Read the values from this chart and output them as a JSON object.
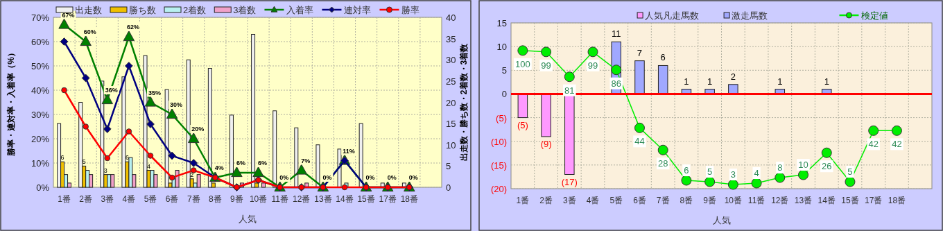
{
  "chart_data": [
    {
      "type": "bar",
      "categories": [
        "1番",
        "2番",
        "3番",
        "4番",
        "5番",
        "6番",
        "7番",
        "8番",
        "9番",
        "10番",
        "11番",
        "12番",
        "13番",
        "14番",
        "15番",
        "17番",
        "18番",
        null
      ],
      "xlabel": "人気",
      "ylabel": "勝率・連対率・入着率（%）",
      "y2label": "出走数・勝ち数・2着数・3着数",
      "ylim": [
        0,
        70
      ],
      "yticks": [
        {
          "value": 0,
          "label": "0%"
        },
        {
          "value": 10,
          "label": "10%"
        },
        {
          "value": 20,
          "label": "20%"
        },
        {
          "value": 30,
          "label": "30%"
        },
        {
          "value": 40,
          "label": "40%"
        },
        {
          "value": 50,
          "label": "50%"
        },
        {
          "value": 60,
          "label": "60%"
        },
        {
          "value": 70,
          "label": "70%"
        }
      ],
      "y2lim": [
        0,
        40
      ],
      "y2ticks": [
        0,
        5,
        10,
        15,
        20,
        25,
        30,
        35,
        40
      ],
      "grid": true,
      "legend": "top",
      "series": [
        {
          "name": "出走数",
          "color": "#f0f0f0",
          "axis": "y2",
          "values": [
            15,
            20,
            25,
            26,
            31,
            23,
            30,
            28,
            17,
            36,
            18,
            14,
            10,
            9,
            15,
            1,
            1,
            null
          ]
        },
        {
          "name": "勝ち数",
          "color": "#f0c000",
          "axis": "y2",
          "values": [
            6,
            5,
            3,
            6,
            4,
            1,
            2,
            1,
            0,
            1,
            0,
            0,
            0,
            0,
            0,
            0,
            0,
            null
          ],
          "value_labels": [
            "6",
            "5",
            "3",
            "6",
            "4",
            null,
            "2",
            null,
            null,
            null,
            null,
            null,
            null,
            null,
            null,
            null,
            null,
            null
          ]
        },
        {
          "name": "2着数",
          "color": "#b8f0f0",
          "axis": "y2",
          "values": [
            3,
            4,
            3,
            7,
            4,
            2,
            1,
            0,
            0,
            0,
            0,
            0,
            0,
            1,
            0,
            0,
            0,
            null
          ]
        },
        {
          "name": "3着数",
          "color": "#f0a0c8",
          "axis": "y2",
          "values": [
            1,
            3,
            3,
            3,
            3,
            4,
            3,
            0,
            1,
            1,
            0,
            1,
            0,
            0,
            0,
            0,
            0,
            null
          ]
        },
        {
          "name": "入着率",
          "type": "line",
          "color": "#008000",
          "marker": "triangle",
          "values": [
            67,
            60,
            36,
            62,
            35,
            30,
            20,
            4,
            6,
            6,
            0,
            7,
            0,
            11,
            0,
            0,
            0,
            null
          ],
          "value_labels": [
            "67%",
            "60%",
            "36%",
            "62%",
            "35%",
            "30%",
            "20%",
            "4%",
            "6%",
            "6%",
            "0%",
            "7%",
            "0%",
            "11%",
            "0%",
            "0%",
            "0%",
            null
          ]
        },
        {
          "name": "連対率",
          "type": "line",
          "color": "#000080",
          "marker": "diamond",
          "values": [
            60,
            45,
            24,
            50,
            26,
            13,
            10,
            4,
            0,
            3,
            0,
            0,
            0,
            11,
            0,
            0,
            0,
            null
          ]
        },
        {
          "name": "勝率",
          "type": "line",
          "color": "#ff0000",
          "marker": "circle",
          "values": [
            40,
            25,
            12,
            23,
            13,
            4,
            7,
            4,
            0,
            3,
            0,
            0,
            0,
            0,
            0,
            0,
            0,
            null
          ]
        }
      ]
    },
    {
      "type": "bar",
      "stacked": true,
      "categories": [
        "1番",
        "2番",
        "3番",
        "4番",
        "5番",
        "6番",
        "7番",
        "8番",
        "9番",
        "10番",
        "11番",
        "12番",
        "13番",
        "14番",
        "15番",
        "17番",
        "18番",
        null
      ],
      "xlabel": "人気",
      "ylim": [
        -20,
        15
      ],
      "yticks": [
        {
          "value": -20,
          "label": "(20)"
        },
        {
          "value": -15,
          "label": "(15)"
        },
        {
          "value": -10,
          "label": "(10)"
        },
        {
          "value": -5,
          "label": "(5)"
        },
        0,
        5,
        10,
        15
      ],
      "y2lim": [
        0,
        120
      ],
      "grid": true,
      "legend": "top",
      "ref_lines": [
        {
          "axis": "y",
          "value": 0,
          "color": "#ff0000"
        }
      ],
      "series": [
        {
          "name": "人気凡走馬数",
          "color": "#ff99ff",
          "values": [
            -5,
            -9,
            -17,
            null,
            null,
            null,
            null,
            null,
            null,
            null,
            null,
            null,
            null,
            null,
            null,
            null,
            null,
            null
          ],
          "value_labels": [
            "(5)",
            "(9)",
            "(17)",
            null,
            null,
            null,
            null,
            null,
            null,
            null,
            null,
            null,
            null,
            null,
            null,
            null,
            null,
            null
          ]
        },
        {
          "name": "激走馬数",
          "color": "#a0a8ff",
          "values": [
            null,
            null,
            null,
            null,
            11,
            7,
            6,
            1,
            1,
            2,
            null,
            1,
            null,
            1,
            null,
            null,
            null,
            null
          ],
          "data_labels": true
        },
        {
          "name": "検定値",
          "type": "line",
          "axis": "y2",
          "color": "#00ee00",
          "marker": "circle",
          "values": [
            100,
            99,
            81,
            99,
            86,
            44,
            28,
            6,
            5,
            3,
            4,
            8,
            10,
            26,
            5,
            42,
            42,
            null
          ],
          "data_labels": true
        }
      ]
    }
  ]
}
